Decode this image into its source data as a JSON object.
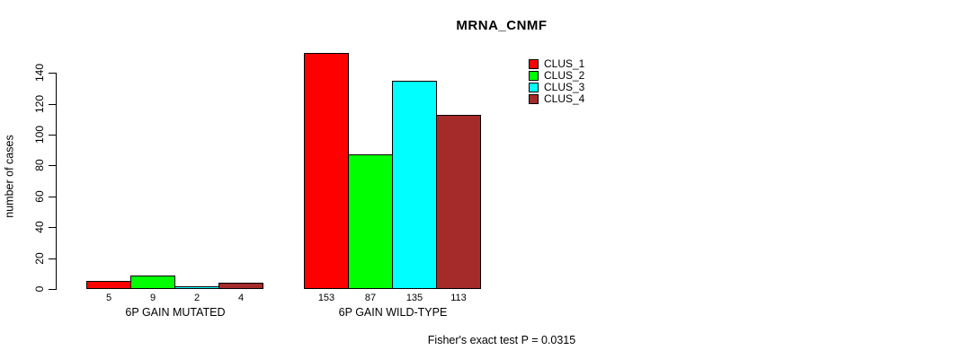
{
  "page": {
    "background_color": "#ffffff"
  },
  "chart_data": {
    "type": "bar",
    "title": "MRNA_CNMF",
    "xlabel": "",
    "ylabel": "number of cases",
    "ylim": [
      0,
      140
    ],
    "yticks": [
      0,
      20,
      40,
      60,
      80,
      100,
      120,
      140
    ],
    "grid": false,
    "legend_position": "top-right-inside",
    "categories": [
      "6P GAIN MUTATED",
      "6P GAIN WILD-TYPE"
    ],
    "series": [
      {
        "name": "CLUS_1",
        "color": "#FF0000",
        "values": [
          5,
          153
        ]
      },
      {
        "name": "CLUS_2",
        "color": "#00FF00",
        "values": [
          9,
          87
        ]
      },
      {
        "name": "CLUS_3",
        "color": "#00FFFF",
        "values": [
          2,
          135
        ]
      },
      {
        "name": "CLUS_4",
        "color": "#A52A2A",
        "values": [
          4,
          113
        ]
      }
    ],
    "bar_value_labels": [
      [
        "5",
        "9",
        "2",
        "4"
      ],
      [
        "153",
        "87",
        "135",
        "113"
      ]
    ],
    "annotation": "Fisher's exact test P = 0.0315"
  }
}
